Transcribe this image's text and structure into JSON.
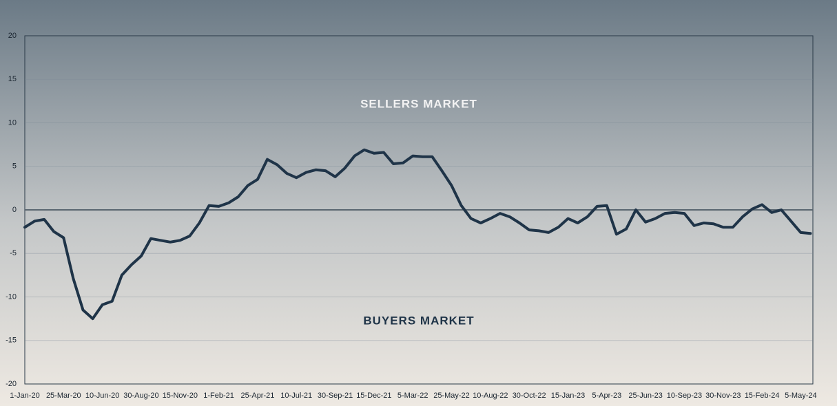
{
  "chart_data": {
    "type": "line",
    "annotations": [
      "SELLERS MARKET",
      "BUYERS MARKET"
    ],
    "categories": [
      "1-Jan-20",
      null,
      null,
      null,
      "25-Mar-20",
      null,
      null,
      null,
      "10-Jun-20",
      null,
      null,
      null,
      "30-Aug-20",
      null,
      null,
      null,
      "15-Nov-20",
      null,
      null,
      null,
      "1-Feb-21",
      null,
      null,
      null,
      "25-Apr-21",
      null,
      null,
      null,
      "10-Jul-21",
      null,
      null,
      null,
      "30-Sep-21",
      null,
      null,
      null,
      "15-Dec-21",
      null,
      null,
      null,
      "5-Mar-22",
      null,
      null,
      null,
      "25-May-22",
      null,
      null,
      null,
      "10-Aug-22",
      null,
      null,
      null,
      "30-Oct-22",
      null,
      null,
      null,
      "15-Jan-23",
      null,
      null,
      null,
      "5-Apr-23",
      null,
      null,
      null,
      "25-Jun-23",
      null,
      null,
      null,
      "10-Sep-23",
      null,
      null,
      null,
      "30-Nov-23",
      null,
      null,
      null,
      "15-Feb-24",
      null,
      null,
      null,
      "5-May-24",
      null
    ],
    "series": [
      {
        "color": "#1f3448",
        "values": [
          -2,
          -1.3,
          -1.1,
          -2.5,
          -3.2,
          -7.9,
          -11.5,
          -12.5,
          -10.9,
          -10.5,
          -7.5,
          -6.3,
          -5.3,
          -3.3,
          -3.5,
          -3.7,
          -3.5,
          -3,
          -1.5,
          0.5,
          0.4,
          0.8,
          1.5,
          2.8,
          3.5,
          5.8,
          5.2,
          4.2,
          3.7,
          4.3,
          4.6,
          4.5,
          3.8,
          4.8,
          6.2,
          6.9,
          6.5,
          6.6,
          5.3,
          5.4,
          6.2,
          6.1,
          6.1,
          4.5,
          2.8,
          0.5,
          -1,
          -1.5,
          -1,
          -0.4,
          -0.8,
          -1.5,
          -2.3,
          -2.4,
          -2.6,
          -2,
          -1,
          -1.5,
          -0.8,
          0.4,
          0.5,
          -2.8,
          -2.2,
          0,
          -1.4,
          -1,
          -0.4,
          -0.3,
          -0.4,
          -1.8,
          -1.5,
          -1.6,
          -2,
          -2,
          -0.8,
          0.1,
          0.6,
          -0.3,
          0,
          -1.3,
          -2.6,
          -2.7
        ]
      }
    ],
    "ylim": [
      -20,
      20
    ],
    "yticks": [
      -20,
      -15,
      -10,
      -5,
      0,
      5,
      10,
      15,
      20
    ],
    "grid": true
  }
}
